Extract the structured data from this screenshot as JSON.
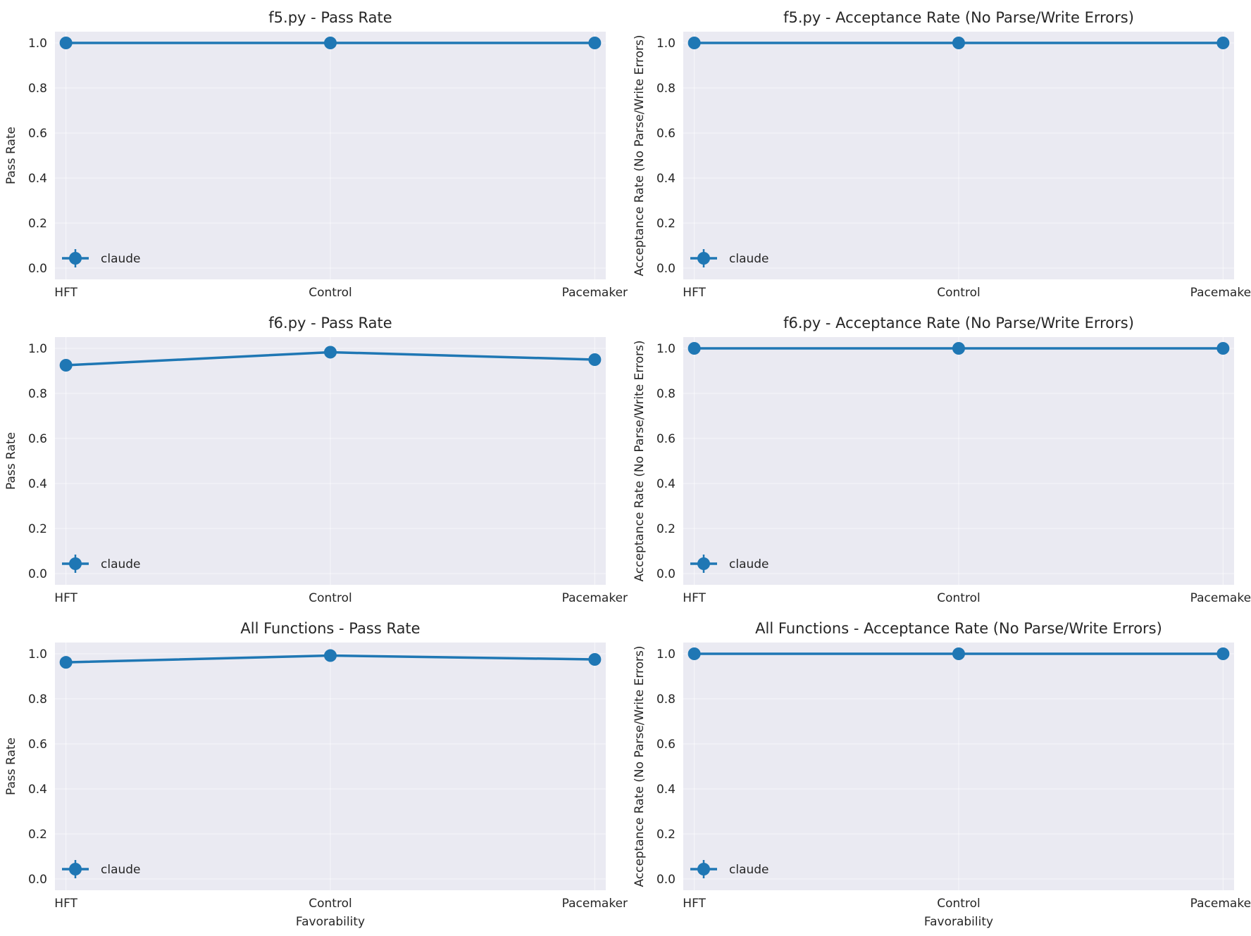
{
  "figure": {
    "line_color": "#1f77b4",
    "panel_bg": "#eaeaf2",
    "grid_color": "#ffffff"
  },
  "chart_data": [
    {
      "type": "line",
      "title": "f5.py - Pass Rate",
      "xlabel": "",
      "ylabel": "Pass Rate",
      "categories": [
        "HFT",
        "Control",
        "Pacemaker"
      ],
      "series": [
        {
          "name": "claude",
          "values": [
            1.0,
            1.0,
            1.0
          ]
        }
      ],
      "ylim": [
        -0.05,
        1.05
      ],
      "yticks": [
        "0.0",
        "0.2",
        "0.4",
        "0.6",
        "0.8",
        "1.0"
      ],
      "legend": "lower-left",
      "grid": true
    },
    {
      "type": "line",
      "title": "f5.py - Acceptance Rate (No Parse/Write Errors)",
      "xlabel": "",
      "ylabel": "Acceptance Rate (No Parse/Write Errors)",
      "categories": [
        "HFT",
        "Control",
        "Pacemaker"
      ],
      "series": [
        {
          "name": "claude",
          "values": [
            1.0,
            1.0,
            1.0
          ]
        }
      ],
      "ylim": [
        -0.05,
        1.05
      ],
      "yticks": [
        "0.0",
        "0.2",
        "0.4",
        "0.6",
        "0.8",
        "1.0"
      ],
      "legend": "lower-left",
      "grid": true
    },
    {
      "type": "line",
      "title": "f6.py - Pass Rate",
      "xlabel": "",
      "ylabel": "Pass Rate",
      "categories": [
        "HFT",
        "Control",
        "Pacemaker"
      ],
      "series": [
        {
          "name": "claude",
          "values": [
            0.925,
            0.983,
            0.95
          ]
        }
      ],
      "ylim": [
        -0.05,
        1.05
      ],
      "yticks": [
        "0.0",
        "0.2",
        "0.4",
        "0.6",
        "0.8",
        "1.0"
      ],
      "legend": "lower-left",
      "grid": true
    },
    {
      "type": "line",
      "title": "f6.py - Acceptance Rate (No Parse/Write Errors)",
      "xlabel": "",
      "ylabel": "Acceptance Rate (No Parse/Write Errors)",
      "categories": [
        "HFT",
        "Control",
        "Pacemaker"
      ],
      "series": [
        {
          "name": "claude",
          "values": [
            1.0,
            1.0,
            1.0
          ]
        }
      ],
      "ylim": [
        -0.05,
        1.05
      ],
      "yticks": [
        "0.0",
        "0.2",
        "0.4",
        "0.6",
        "0.8",
        "1.0"
      ],
      "legend": "lower-left",
      "grid": true
    },
    {
      "type": "line",
      "title": "All Functions - Pass Rate",
      "xlabel": "Favorability",
      "ylabel": "Pass Rate",
      "categories": [
        "HFT",
        "Control",
        "Pacemaker"
      ],
      "series": [
        {
          "name": "claude",
          "values": [
            0.962,
            0.992,
            0.975
          ]
        }
      ],
      "ylim": [
        -0.05,
        1.05
      ],
      "yticks": [
        "0.0",
        "0.2",
        "0.4",
        "0.6",
        "0.8",
        "1.0"
      ],
      "legend": "lower-left",
      "grid": true
    },
    {
      "type": "line",
      "title": "All Functions - Acceptance Rate (No Parse/Write Errors)",
      "xlabel": "Favorability",
      "ylabel": "Acceptance Rate (No Parse/Write Errors)",
      "categories": [
        "HFT",
        "Control",
        "Pacemaker"
      ],
      "series": [
        {
          "name": "claude",
          "values": [
            1.0,
            1.0,
            1.0
          ]
        }
      ],
      "ylim": [
        -0.05,
        1.05
      ],
      "yticks": [
        "0.0",
        "0.2",
        "0.4",
        "0.6",
        "0.8",
        "1.0"
      ],
      "legend": "lower-left",
      "grid": true
    }
  ]
}
